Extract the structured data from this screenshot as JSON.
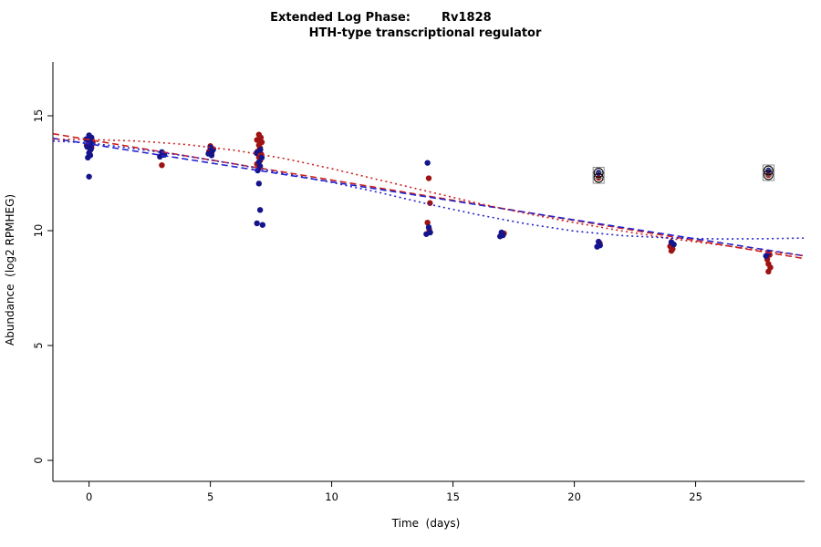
{
  "title": {
    "prefix": "Extended Log Phase:",
    "gene": "Rv1828",
    "line2": "HTH-type transcriptional regulator"
  },
  "chart_data": {
    "type": "scatter",
    "title": "Extended Log Phase: Rv1828 — HTH-type transcriptional regulator",
    "xlabel": "Time  (days)",
    "ylabel": "Abundance  (log2 RPMHEG)",
    "xlim": [
      -1.49,
      29.49
    ],
    "ylim": [
      -0.913,
      17.857
    ],
    "x_ticks": [
      0,
      5,
      10,
      15,
      20,
      25
    ],
    "y_ticks": [
      0,
      5,
      10,
      15
    ],
    "grid": false,
    "legend": "none",
    "colors": {
      "point_red": "#9e1212",
      "point_blue": "#14148c",
      "line_red": "#cc2020",
      "line_blue": "#2424cc",
      "ring": "#000000",
      "ring_box": "#808080",
      "axis": "#000000"
    },
    "series": [
      {
        "name": "red-replicates",
        "color": "point_red",
        "ring": false,
        "points": [
          [
            0.0,
            13.9
          ],
          [
            0.15,
            13.82
          ],
          [
            -0.1,
            13.72
          ],
          [
            0.1,
            13.62
          ],
          [
            0.05,
            13.5
          ],
          [
            -0.05,
            13.95
          ],
          [
            3.05,
            13.35
          ],
          [
            3.0,
            12.85
          ],
          [
            5.0,
            13.68
          ],
          [
            5.12,
            13.55
          ],
          [
            4.95,
            13.45
          ],
          [
            5.05,
            13.38
          ],
          [
            7.0,
            14.18
          ],
          [
            7.08,
            14.05
          ],
          [
            6.92,
            13.95
          ],
          [
            7.12,
            13.85
          ],
          [
            7.0,
            13.72
          ],
          [
            7.05,
            13.6
          ],
          [
            6.95,
            13.45
          ],
          [
            7.1,
            13.32
          ],
          [
            7.0,
            13.2
          ],
          [
            7.05,
            13.05
          ],
          [
            6.92,
            12.9
          ],
          [
            7.0,
            12.72
          ],
          [
            14.0,
            12.28
          ],
          [
            14.05,
            11.2
          ],
          [
            13.95,
            10.35
          ],
          [
            14.02,
            10.05
          ],
          [
            17.1,
            9.88
          ],
          [
            17.0,
            9.82
          ],
          [
            21.05,
            9.45
          ],
          [
            23.95,
            9.32
          ],
          [
            24.05,
            9.2
          ],
          [
            24.0,
            9.12
          ],
          [
            28.05,
            8.95
          ],
          [
            27.95,
            8.75
          ],
          [
            28.0,
            8.55
          ],
          [
            28.08,
            8.4
          ],
          [
            28.0,
            8.22
          ]
        ]
      },
      {
        "name": "blue-replicates",
        "color": "point_blue",
        "ring": false,
        "points": [
          [
            0.0,
            14.15
          ],
          [
            0.1,
            14.05
          ],
          [
            -0.12,
            13.98
          ],
          [
            0.05,
            13.88
          ],
          [
            0.12,
            13.78
          ],
          [
            -0.08,
            13.65
          ],
          [
            0.08,
            13.55
          ],
          [
            0.0,
            13.38
          ],
          [
            0.05,
            13.28
          ],
          [
            -0.05,
            13.18
          ],
          [
            0.0,
            12.35
          ],
          [
            3.0,
            13.42
          ],
          [
            3.1,
            13.3
          ],
          [
            2.92,
            13.22
          ],
          [
            5.0,
            13.62
          ],
          [
            5.1,
            13.5
          ],
          [
            4.92,
            13.35
          ],
          [
            5.05,
            13.28
          ],
          [
            7.06,
            13.52
          ],
          [
            6.9,
            13.38
          ],
          [
            7.12,
            13.18
          ],
          [
            7.0,
            12.98
          ],
          [
            7.05,
            12.8
          ],
          [
            6.95,
            12.62
          ],
          [
            7.0,
            12.05
          ],
          [
            7.05,
            10.9
          ],
          [
            6.92,
            10.32
          ],
          [
            7.15,
            10.25
          ],
          [
            13.95,
            12.95
          ],
          [
            14.0,
            10.15
          ],
          [
            14.06,
            9.92
          ],
          [
            13.9,
            9.85
          ],
          [
            17.0,
            9.92
          ],
          [
            17.06,
            9.8
          ],
          [
            16.94,
            9.75
          ],
          [
            21.0,
            9.52
          ],
          [
            21.06,
            9.36
          ],
          [
            20.94,
            9.3
          ],
          [
            24.0,
            9.5
          ],
          [
            24.1,
            9.4
          ],
          [
            28.0,
            9.05
          ],
          [
            27.9,
            8.9
          ]
        ]
      },
      {
        "name": "red-flagged-outliers",
        "color": "point_red",
        "ring": true,
        "points": [
          [
            21.0,
            12.3
          ],
          [
            28.0,
            12.42
          ]
        ]
      },
      {
        "name": "blue-flagged-outliers",
        "color": "point_blue",
        "ring": true,
        "points": [
          [
            21.0,
            12.52
          ],
          [
            28.0,
            12.62
          ]
        ]
      }
    ],
    "lines": [
      {
        "name": "red-linear-fit",
        "color": "line_red",
        "dash": "7,4",
        "points": [
          [
            -1.49,
            14.22
          ],
          [
            29.49,
            8.78
          ]
        ]
      },
      {
        "name": "blue-linear-fit",
        "color": "line_blue",
        "dash": "7,4",
        "points": [
          [
            -1.49,
            14.02
          ],
          [
            29.49,
            8.9
          ]
        ]
      },
      {
        "name": "red-smooth-fit",
        "color": "line_red",
        "dash": "2,3.5",
        "points": [
          [
            -1.49,
            13.98
          ],
          [
            0,
            13.97
          ],
          [
            2,
            13.9
          ],
          [
            4,
            13.75
          ],
          [
            6,
            13.5
          ],
          [
            8,
            13.15
          ],
          [
            10,
            12.7
          ],
          [
            12,
            12.2
          ],
          [
            14,
            11.7
          ],
          [
            16,
            11.2
          ],
          [
            18,
            10.75
          ],
          [
            20,
            10.35
          ],
          [
            22,
            9.98
          ],
          [
            24,
            9.65
          ],
          [
            26,
            9.38
          ],
          [
            28,
            9.1
          ],
          [
            29.49,
            8.9
          ]
        ]
      },
      {
        "name": "blue-smooth-fit",
        "color": "line_blue",
        "dash": "2,3.5",
        "points": [
          [
            -1.49,
            13.9
          ],
          [
            0,
            13.82
          ],
          [
            2,
            13.55
          ],
          [
            4,
            13.25
          ],
          [
            6,
            12.9
          ],
          [
            8,
            12.5
          ],
          [
            10,
            12.1
          ],
          [
            12,
            11.65
          ],
          [
            14,
            11.15
          ],
          [
            16,
            10.7
          ],
          [
            18,
            10.3
          ],
          [
            20,
            9.98
          ],
          [
            22,
            9.78
          ],
          [
            24,
            9.68
          ],
          [
            26,
            9.64
          ],
          [
            28,
            9.65
          ],
          [
            29.49,
            9.68
          ]
        ]
      }
    ]
  }
}
